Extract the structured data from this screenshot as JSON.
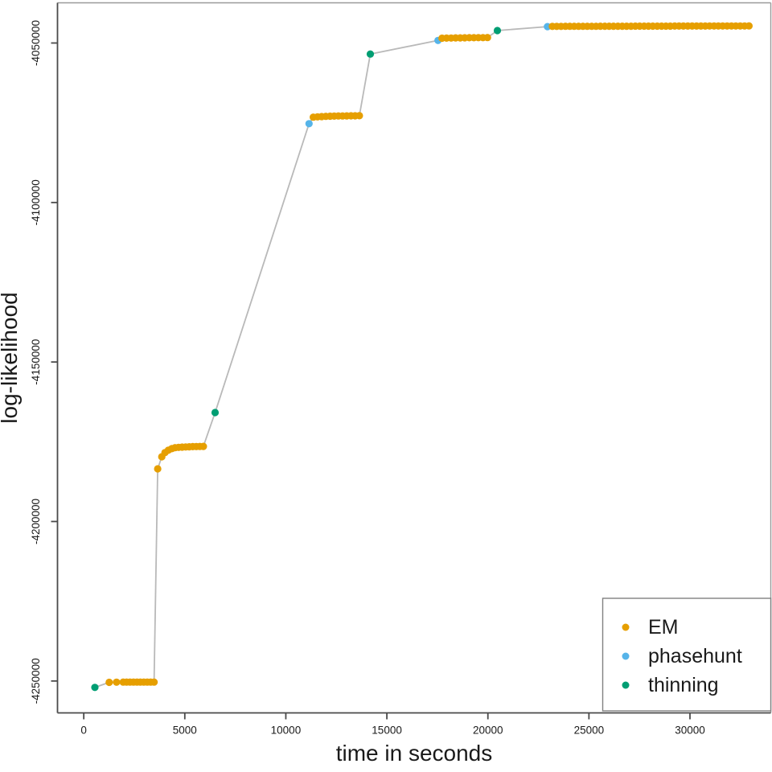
{
  "chart_data": {
    "type": "scatter",
    "title": "",
    "xlabel": "time in seconds",
    "ylabel": "log-likelihood",
    "xlim": [
      -1300,
      34000
    ],
    "ylim": [
      -4260000,
      -4037400
    ],
    "grid": false,
    "x_ticks": [
      0,
      5000,
      10000,
      15000,
      20000,
      25000,
      30000
    ],
    "x_tick_labels": [
      "0",
      "5000",
      "10000",
      "15000",
      "20000",
      "25000",
      "30000"
    ],
    "y_ticks": [
      -4050000,
      -4100000,
      -4150000,
      -4200000,
      -4250000
    ],
    "y_tick_labels": [
      "-4050000",
      "-4100000",
      "-4150000",
      "-4200000",
      "-4250000"
    ],
    "connector_line_color": "#b9b9b9",
    "series": [
      {
        "name": "EM",
        "color": "#E69F00"
      },
      {
        "name": "phasehunt",
        "color": "#56B4E9"
      },
      {
        "name": "thinning",
        "color": "#009E73"
      }
    ],
    "legend": {
      "position": "bottom-right",
      "entries": [
        {
          "label": "EM",
          "color": "#E69F00"
        },
        {
          "label": "phasehunt",
          "color": "#56B4E9"
        },
        {
          "label": "thinning",
          "color": "#009E73"
        }
      ]
    },
    "points": [
      [
        550,
        -4252000,
        2
      ],
      [
        1260,
        -4250420,
        0
      ],
      [
        1620,
        -4250380,
        0
      ],
      [
        1950,
        -4250350,
        0
      ],
      [
        2120,
        -4250350,
        0
      ],
      [
        2290,
        -4250350,
        0
      ],
      [
        2460,
        -4250350,
        0
      ],
      [
        2630,
        -4250350,
        0
      ],
      [
        2800,
        -4250350,
        0
      ],
      [
        2970,
        -4250350,
        0
      ],
      [
        3140,
        -4250350,
        0
      ],
      [
        3310,
        -4250350,
        0
      ],
      [
        3480,
        -4250350,
        0
      ],
      [
        3660,
        -4183500,
        0
      ],
      [
        3860,
        -4179700,
        0
      ],
      [
        4020,
        -4178400,
        0
      ],
      [
        4190,
        -4177650,
        0
      ],
      [
        4360,
        -4177150,
        0
      ],
      [
        4520,
        -4176850,
        0
      ],
      [
        4695,
        -4176750,
        0
      ],
      [
        4870,
        -4176680,
        0
      ],
      [
        5045,
        -4176620,
        0
      ],
      [
        5220,
        -4176570,
        0
      ],
      [
        5395,
        -4176530,
        0
      ],
      [
        5570,
        -4176500,
        0
      ],
      [
        5745,
        -4176470,
        0
      ],
      [
        5920,
        -4176450,
        0
      ],
      [
        6500,
        -4165850,
        2
      ],
      [
        11150,
        -4075280,
        1
      ],
      [
        11360,
        -4073250,
        0
      ],
      [
        11570,
        -4073150,
        0
      ],
      [
        11775,
        -4073070,
        0
      ],
      [
        11980,
        -4073000,
        0
      ],
      [
        12190,
        -4072950,
        0
      ],
      [
        12395,
        -4072910,
        0
      ],
      [
        12600,
        -4072880,
        0
      ],
      [
        12810,
        -4072860,
        0
      ],
      [
        13015,
        -4072845,
        0
      ],
      [
        13225,
        -4072830,
        0
      ],
      [
        13430,
        -4072815,
        0
      ],
      [
        13640,
        -4072800,
        0
      ],
      [
        14180,
        -4053450,
        2
      ],
      [
        17530,
        -4049200,
        1
      ],
      [
        17730,
        -4048500,
        0
      ],
      [
        17955,
        -4048460,
        0
      ],
      [
        18180,
        -4048430,
        0
      ],
      [
        18405,
        -4048400,
        0
      ],
      [
        18630,
        -4048380,
        0
      ],
      [
        18855,
        -4048360,
        0
      ],
      [
        19080,
        -4048345,
        0
      ],
      [
        19305,
        -4048330,
        0
      ],
      [
        19530,
        -4048320,
        0
      ],
      [
        19755,
        -4048310,
        0
      ],
      [
        19980,
        -4048300,
        0
      ],
      [
        20470,
        -4046100,
        2
      ],
      [
        22950,
        -4044850,
        1
      ],
      [
        23190,
        -4044780,
        0
      ],
      [
        23406,
        -4044777,
        0
      ],
      [
        23622,
        -4044774,
        0
      ],
      [
        23839,
        -4044771,
        0
      ],
      [
        24055,
        -4044768,
        0
      ],
      [
        24271,
        -4044765,
        0
      ],
      [
        24487,
        -4044762,
        0
      ],
      [
        24703,
        -4044759,
        0
      ],
      [
        24920,
        -4044756,
        0
      ],
      [
        25136,
        -4044753,
        0
      ],
      [
        25352,
        -4044750,
        0
      ],
      [
        25568,
        -4044747,
        0
      ],
      [
        25784,
        -4044744,
        0
      ],
      [
        26001,
        -4044741,
        0
      ],
      [
        26217,
        -4044738,
        0
      ],
      [
        26433,
        -4044735,
        0
      ],
      [
        26649,
        -4044732,
        0
      ],
      [
        26865,
        -4044729,
        0
      ],
      [
        27082,
        -4044726,
        0
      ],
      [
        27298,
        -4044723,
        0
      ],
      [
        27514,
        -4044720,
        0
      ],
      [
        27730,
        -4044717,
        0
      ],
      [
        27946,
        -4044714,
        0
      ],
      [
        28163,
        -4044711,
        0
      ],
      [
        28379,
        -4044708,
        0
      ],
      [
        28595,
        -4044705,
        0
      ],
      [
        28811,
        -4044702,
        0
      ],
      [
        29027,
        -4044699,
        0
      ],
      [
        29244,
        -4044696,
        0
      ],
      [
        29460,
        -4044693,
        0
      ],
      [
        29676,
        -4044690,
        0
      ],
      [
        29892,
        -4044687,
        0
      ],
      [
        30108,
        -4044684,
        0
      ],
      [
        30325,
        -4044681,
        0
      ],
      [
        30541,
        -4044678,
        0
      ],
      [
        30757,
        -4044675,
        0
      ],
      [
        30973,
        -4044672,
        0
      ],
      [
        31189,
        -4044669,
        0
      ],
      [
        31406,
        -4044666,
        0
      ],
      [
        31622,
        -4044663,
        0
      ],
      [
        31838,
        -4044660,
        0
      ],
      [
        32054,
        -4044657,
        0
      ],
      [
        32270,
        -4044654,
        0
      ],
      [
        32487,
        -4044651,
        0
      ],
      [
        32703,
        -4044648,
        0
      ],
      [
        32920,
        -4044645,
        0
      ]
    ]
  }
}
